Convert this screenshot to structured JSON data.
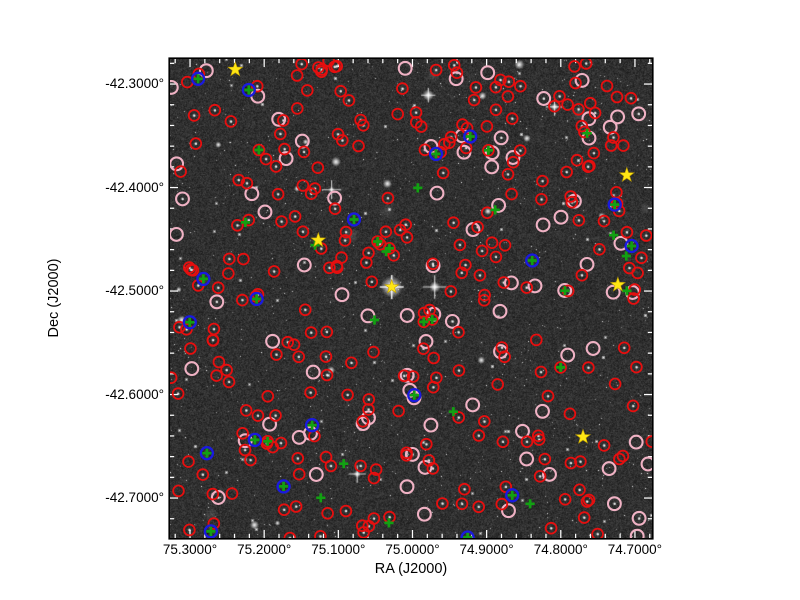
{
  "figure": {
    "page_bg": "#ffffff",
    "frame_color": "#000000",
    "text_color": "#000000",
    "tick_color": "#ffffff"
  },
  "chart_data": {
    "type": "scatter",
    "title": "",
    "xlabel": "RA (J2000)",
    "ylabel": "Dec (J2000)",
    "x_tick_labels": [
      "75.3000°",
      "75.2000°",
      "75.1000°",
      "75.0000°",
      "74.9000°",
      "74.8000°",
      "74.7000°"
    ],
    "y_tick_labels": [
      "-42.3000°",
      "-42.4000°",
      "-42.5000°",
      "-42.6000°",
      "-42.7000°"
    ],
    "x_tick_values": [
      75.3,
      75.2,
      75.1,
      75.0,
      74.9,
      74.8,
      74.7
    ],
    "y_tick_values": [
      -42.3,
      -42.4,
      -42.5,
      -42.6,
      -42.7
    ],
    "xlim": [
      75.327,
      74.677
    ],
    "ylim": [
      -42.7386,
      -42.2758
    ],
    "axis_unit": "deg",
    "minor_tick_step": 0.02,
    "grid": false,
    "background": "grayscale astronomical star-field image",
    "series": [
      {
        "name": "red-circle-sources",
        "marker": "circle",
        "color": "#e60f0f",
        "count": 290,
        "radius": 5.4,
        "center_dot_fraction": 0.72
      },
      {
        "name": "pink-circle-sources",
        "marker": "circle",
        "color": "#f0b2c4",
        "count": 86,
        "radius": 6.4,
        "center_dot_fraction": 0.15
      },
      {
        "name": "blue-circle-sources",
        "marker": "circle",
        "color": "#1a1ae0",
        "count": 19,
        "radius": 6.0,
        "inner": "green-plus"
      },
      {
        "name": "green-plus-sources",
        "marker": "plus",
        "color": "#12a012",
        "count": 16,
        "size": 9,
        "count_inside_red": 8
      },
      {
        "name": "yellow-star-sources",
        "marker": "star",
        "color": "#ffe614",
        "size": 15,
        "points_radec": [
          [
            75.239,
            -42.286
          ],
          [
            75.127,
            -42.451
          ],
          [
            74.711,
            -42.388
          ],
          [
            74.723,
            -42.494
          ],
          [
            74.77,
            -42.641
          ]
        ]
      }
    ],
    "bright_star": {
      "ra": 75.028,
      "dec": -42.496,
      "diffraction_spikes": true,
      "marker": "yellow-star"
    },
    "render_seed": 1337
  }
}
